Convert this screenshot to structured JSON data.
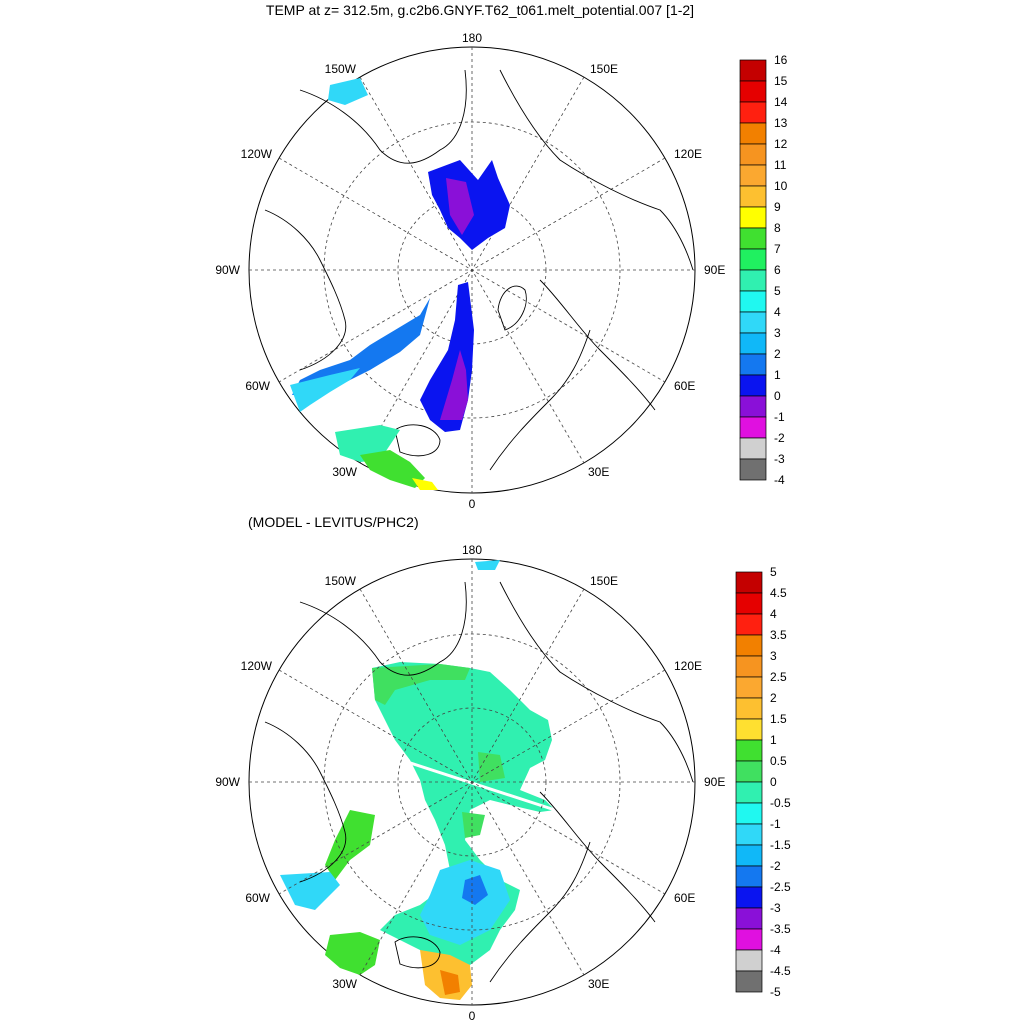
{
  "top_panel": {
    "title": "TEMP at z= 312.5m, g.c2b6.GNYF.T62_t061.melt_potential.007 [1-2]",
    "lon_labels": {
      "top": "180",
      "bottom": "0",
      "left": "90W",
      "right": "90E",
      "ul1": "150W",
      "ul2": "120W",
      "ur1": "150E",
      "ur2": "120E",
      "ll1": "60W",
      "ll2": "30W",
      "lr1": "60E",
      "lr2": "30E"
    },
    "colorbar": {
      "labels": [
        "16",
        "15",
        "14",
        "13",
        "12",
        "11",
        "10",
        "9",
        "8",
        "7",
        "6",
        "5",
        "4",
        "3",
        "2",
        "1",
        "0",
        "-1",
        "-2",
        "-3",
        "-4"
      ],
      "colors": [
        "#c40000",
        "#e50000",
        "#ff2010",
        "#f28000",
        "#f69420",
        "#fba830",
        "#fdc030",
        "#ffff00",
        "#40e030",
        "#20f060",
        "#30f0b0",
        "#20f8f0",
        "#30d8f8",
        "#10b8f8",
        "#1478f0",
        "#0a14f0",
        "#8a10d8",
        "#e010e0",
        "#d0d0d0",
        "#707070"
      ]
    }
  },
  "bottom_panel": {
    "title": "(MODEL - LEVITUS/PHC2)",
    "lon_labels": {
      "top": "180",
      "bottom": "0",
      "left": "90W",
      "right": "90E",
      "ul1": "150W",
      "ul2": "120W",
      "ur1": "150E",
      "ur2": "120E",
      "ll1": "60W",
      "ll2": "30W",
      "lr1": "60E",
      "lr2": "30E"
    },
    "colorbar": {
      "labels": [
        "5",
        "4.5",
        "4",
        "3.5",
        "3",
        "2.5",
        "2",
        "1.5",
        "1",
        "0.5",
        "0",
        "-0.5",
        "-1",
        "-1.5",
        "-2",
        "-2.5",
        "-3",
        "-3.5",
        "-4",
        "-4.5",
        "-5"
      ],
      "colors": [
        "#c40000",
        "#e50000",
        "#ff2010",
        "#f28000",
        "#f69420",
        "#fba830",
        "#fdc030",
        "#ffe030",
        "#40e030",
        "#40e060",
        "#30f0b0",
        "#20f8f0",
        "#30d8f8",
        "#10b8f8",
        "#1478f0",
        "#0a14f0",
        "#8a10d8",
        "#e010e0",
        "#d0d0d0",
        "#707070"
      ]
    }
  }
}
